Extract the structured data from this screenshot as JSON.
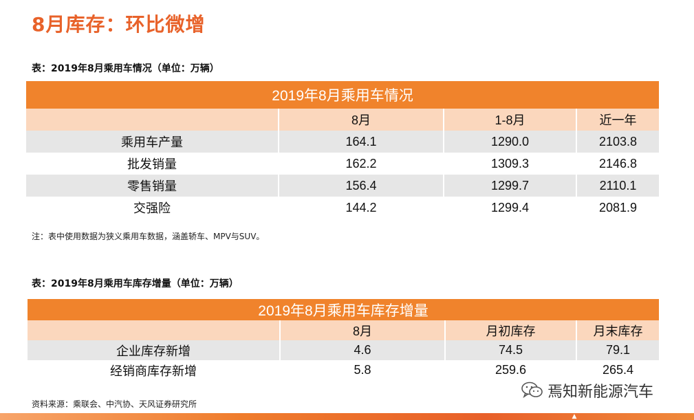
{
  "page_title": "8月库存：环比微增",
  "table1": {
    "caption": "表：2019年8月乘用车情况（单位：万辆）",
    "title": "2019年8月乘用车情况",
    "columns": [
      "",
      "8月",
      "1-8月",
      "近一年"
    ],
    "rows": [
      {
        "label": "乘用车产量",
        "values": [
          "164.1",
          "1290.0",
          "2103.8"
        ]
      },
      {
        "label": "批发销量",
        "values": [
          "162.2",
          "1309.3",
          "2146.8"
        ]
      },
      {
        "label": "零售销量",
        "values": [
          "156.4",
          "1299.7",
          "2110.1"
        ]
      },
      {
        "label": "交强险",
        "values": [
          "144.2",
          "1299.4",
          "2081.9"
        ]
      }
    ],
    "note": "注：表中使用数据为狭义乘用车数据，涵盖轿车、MPV与SUV。"
  },
  "table2": {
    "caption": "表：2019年8月乘用车库存增量（单位：万辆）",
    "title": "2019年8月乘用车库存增量",
    "columns": [
      "",
      "8月",
      "月初库存",
      "月末库存"
    ],
    "rows": [
      {
        "label": "企业库存新增",
        "values": [
          "4.6",
          "74.5",
          "79.1"
        ]
      },
      {
        "label": "经销商库存新增",
        "values": [
          "5.8",
          "259.6",
          "265.4"
        ]
      }
    ]
  },
  "source": "资料来源：乘联会、中汽协、天风证券研究所",
  "watermark": {
    "text": "焉知新能源汽车",
    "icon": "wechat-icon"
  },
  "colors": {
    "accent": "#f0832c",
    "header_light": "#fbd7bd",
    "row_shade": "#e6e6e6",
    "title": "#e8622a"
  }
}
